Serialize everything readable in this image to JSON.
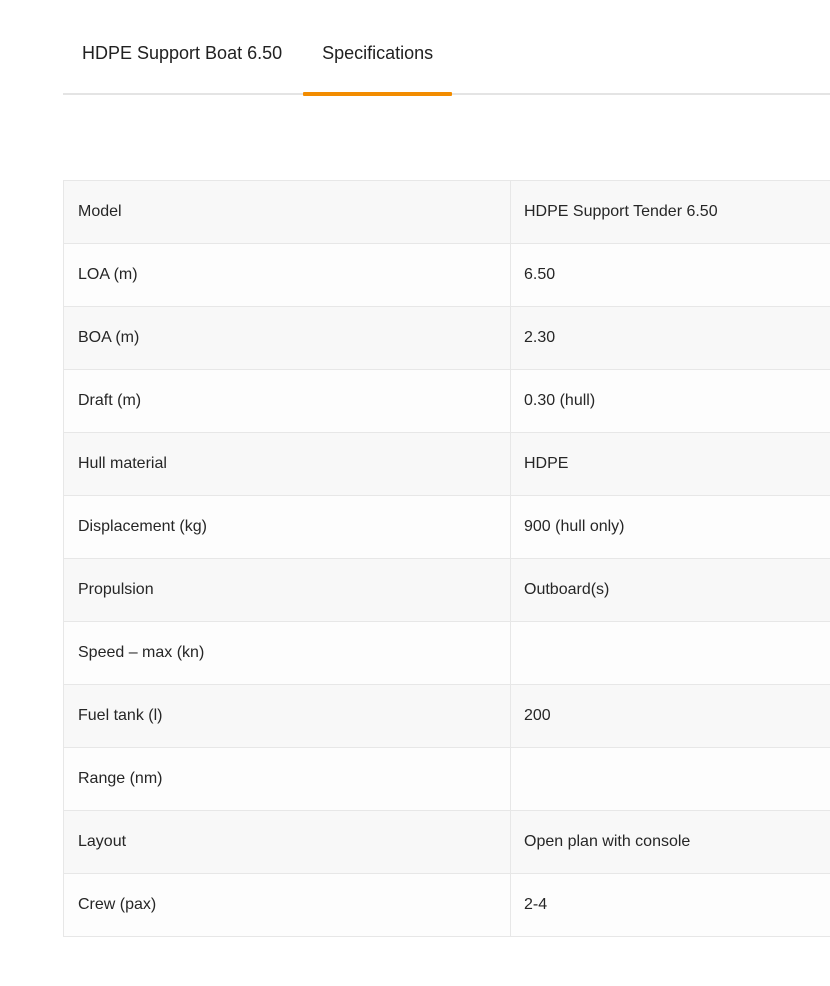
{
  "tabs": [
    {
      "label": "HDPE Support Boat 6.50",
      "active": false
    },
    {
      "label": "Specifications",
      "active": true
    }
  ],
  "accent_color": "#f28c00",
  "spec_table": {
    "rows": [
      {
        "label": "Model",
        "value": "HDPE Support Tender 6.50"
      },
      {
        "label": "LOA (m)",
        "value": "6.50"
      },
      {
        "label": "BOA (m)",
        "value": "2.30"
      },
      {
        "label": "Draft (m)",
        "value": "0.30 (hull)"
      },
      {
        "label": "Hull material",
        "value": "HDPE"
      },
      {
        "label": "Displacement (kg)",
        "value": "900 (hull only)"
      },
      {
        "label": "Propulsion",
        "value": "Outboard(s)"
      },
      {
        "label": "Speed – max (kn)",
        "value": ""
      },
      {
        "label": "Fuel tank (l)",
        "value": "200"
      },
      {
        "label": "Range (nm)",
        "value": ""
      },
      {
        "label": "Layout",
        "value": "Open plan with console"
      },
      {
        "label": "Crew (pax)",
        "value": "2-4"
      }
    ]
  }
}
